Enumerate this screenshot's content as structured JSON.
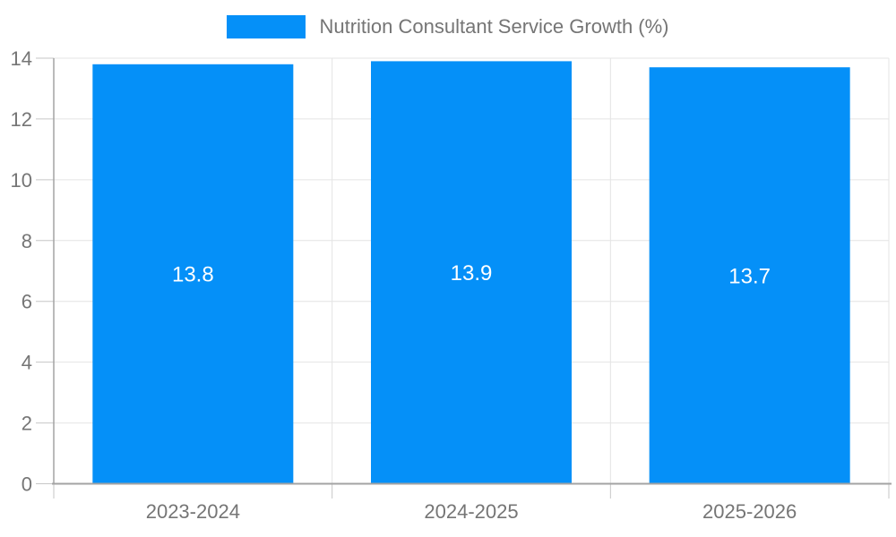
{
  "legend": {
    "label": "Nutrition Consultant Service Growth (%)"
  },
  "chart_data": {
    "type": "bar",
    "title": "Nutrition Consultant Service Growth (%)",
    "categories": [
      "2023-2024",
      "2024-2025",
      "2025-2026"
    ],
    "series": [
      {
        "name": "Nutrition Consultant Service Growth (%)",
        "values": [
          13.8,
          13.9,
          13.7
        ]
      }
    ],
    "value_labels": [
      "13.8",
      "13.9",
      "13.7"
    ],
    "xlabel": "",
    "ylabel": "",
    "ylim": [
      0,
      14
    ],
    "yticks": [
      0,
      2,
      4,
      6,
      8,
      10,
      12,
      14
    ],
    "grid": true,
    "legend_position": "top-center",
    "colors": {
      "bar": "#0590F8",
      "bar_label": "#ffffff",
      "axis_text": "#757575",
      "grid_line": "#e4e4e4",
      "tick_line": "#c6c6c6",
      "axis_line": "#a3a3a3",
      "background": "#ffffff"
    }
  }
}
